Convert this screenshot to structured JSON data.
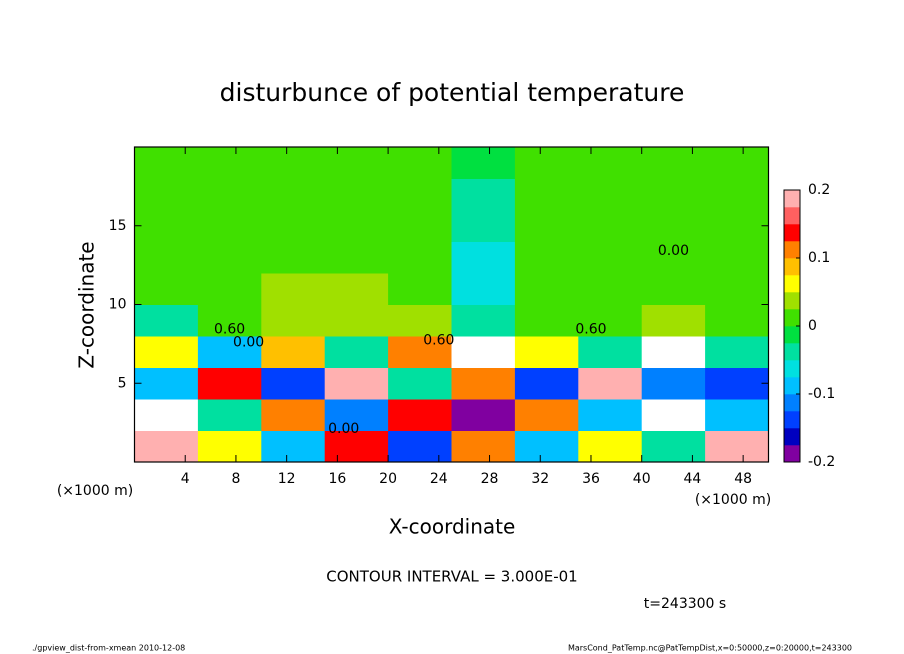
{
  "chart_data": {
    "type": "heatmap",
    "title": "disturbunce of potential temperature",
    "xlabel": "X-coordinate",
    "ylabel": "Z-coordinate",
    "x_unit": "(×1000 m)",
    "y_unit": "(×1000 m)",
    "xlim": [
      0,
      50
    ],
    "ylim": [
      0,
      20
    ],
    "xticks": [
      4,
      8,
      12,
      16,
      20,
      24,
      28,
      32,
      36,
      40,
      44,
      48
    ],
    "yticks": [
      5,
      10,
      15
    ],
    "x_bins": [
      0,
      5,
      10,
      15,
      20,
      25,
      30,
      35,
      40,
      45,
      50
    ],
    "z_bins": [
      0,
      2,
      4,
      6,
      8,
      10,
      12,
      14,
      16,
      18,
      20
    ],
    "values": [
      [
        0.2,
        0.05,
        -0.1,
        0.15,
        -0.15,
        0.1,
        -0.1,
        0.05,
        -0.05,
        0.2
      ],
      [
        0.3,
        -0.05,
        0.1,
        -0.12,
        0.15,
        -0.18,
        0.12,
        -0.08,
        0.3,
        -0.1
      ],
      [
        -0.1,
        0.15,
        -0.15,
        0.18,
        -0.05,
        0.1,
        -0.15,
        0.2,
        -0.12,
        -0.15
      ],
      [
        0.05,
        -0.1,
        0.08,
        -0.05,
        0.1,
        0.3,
        0.05,
        -0.03,
        0.3,
        -0.05
      ],
      [
        -0.05,
        0.02,
        0.03,
        0.03,
        0.03,
        -0.05,
        0.02,
        0.02,
        0.03,
        0.02
      ],
      [
        0.01,
        0.02,
        0.03,
        0.03,
        0.02,
        -0.06,
        0.01,
        0.02,
        0.02,
        0.02
      ],
      [
        0.01,
        0.02,
        0.02,
        0.02,
        0.01,
        -0.06,
        0,
        0.01,
        0.02,
        0.02
      ],
      [
        0.01,
        0.01,
        0.01,
        0.01,
        0,
        -0.05,
        0,
        0.01,
        0.01,
        0.01
      ],
      [
        0.01,
        0.01,
        0.01,
        0,
        0,
        -0.03,
        0,
        0.01,
        0.01,
        0.01
      ],
      [
        0.01,
        0.01,
        0,
        0,
        0,
        -0.01,
        0,
        0,
        0.01,
        0.01
      ]
    ],
    "clim": [
      -0.2,
      0.2
    ],
    "cticks": [
      -0.2,
      -0.1,
      0,
      0.1,
      0.2
    ],
    "colormap": [
      "#8000a0",
      "#0000c0",
      "#0040ff",
      "#0080ff",
      "#00c0ff",
      "#00e0e0",
      "#00e0a0",
      "#00e040",
      "#40e000",
      "#a0e000",
      "#ffff00",
      "#ffc000",
      "#ff8000",
      "#ff0000",
      "#ff6060",
      "#ffb0b0"
    ],
    "over_color": "#ffffff",
    "contour_labels": [
      {
        "text": "0.60",
        "x": 7.5,
        "z": 8.4
      },
      {
        "text": "0.00",
        "x": 9,
        "z": 7.6
      },
      {
        "text": "0.60",
        "x": 24,
        "z": 7.7
      },
      {
        "text": "0.00",
        "x": 16.5,
        "z": 2.1
      },
      {
        "text": "0.60",
        "x": 36,
        "z": 8.4
      },
      {
        "text": "0.00",
        "x": 42.5,
        "z": 13.4
      }
    ],
    "contour_interval": "CONTOUR INTERVAL = 3.000E-01",
    "time": "t=243300 s",
    "footer_left": "./gpview_dist-from-xmean  2010-12-08",
    "footer_right": "MarsCond_PatTemp.nc@PatTempDist,x=0:50000,z=0:20000,t=243300"
  }
}
